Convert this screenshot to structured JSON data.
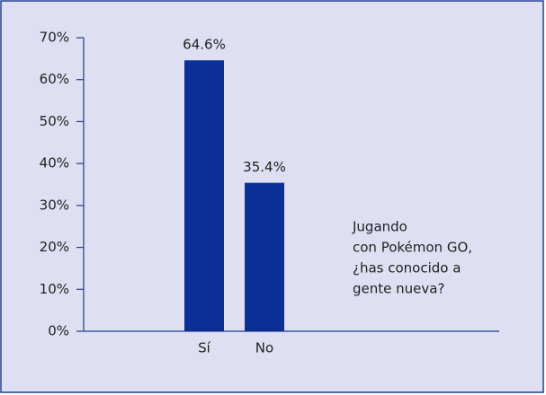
{
  "chart_data": {
    "type": "bar",
    "categories": [
      "Sí",
      "No"
    ],
    "values": [
      64.6,
      35.4
    ],
    "value_labels": [
      "64.6%",
      "35.4%"
    ],
    "color": "#0a2f96",
    "ylim": [
      0,
      70
    ],
    "yticks": [
      {
        "value": 0,
        "label": "0%"
      },
      {
        "value": 10,
        "label": "10%"
      },
      {
        "value": 20,
        "label": "20%"
      },
      {
        "value": 30,
        "label": "30%"
      },
      {
        "value": 40,
        "label": "40%"
      },
      {
        "value": 50,
        "label": "50%"
      },
      {
        "value": 60,
        "label": "60%"
      },
      {
        "value": 70,
        "label": "70%"
      }
    ],
    "annotation": [
      "Jugando",
      "con Pokémon GO,",
      "¿has conocido a",
      "gente nueva?"
    ]
  }
}
